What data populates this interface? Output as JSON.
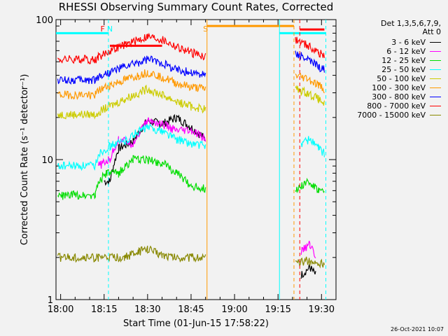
{
  "chart_data": {
    "type": "line",
    "title": "RHESSI Observing Summary Count Rates, Corrected",
    "xlabel": "Start Time (01-Jun-15 17:58:22)",
    "ylabel": "Corrected Count Rate (s⁻¹ detector⁻¹)",
    "yscale": "log",
    "ylim": [
      1,
      100
    ],
    "xlim_minutes": [
      -1.6,
      95
    ],
    "xticks": [
      {
        "t": 0,
        "label": "18:00"
      },
      {
        "t": 15,
        "label": "18:15"
      },
      {
        "t": 30,
        "label": "18:30"
      },
      {
        "t": 45,
        "label": "18:45"
      },
      {
        "t": 60,
        "label": "19:00"
      },
      {
        "t": 75,
        "label": "19:15"
      },
      {
        "t": 90,
        "label": "19:30"
      }
    ],
    "yticks": [
      {
        "v": 1,
        "label": "1"
      },
      {
        "v": 10,
        "label": "10"
      },
      {
        "v": 100,
        "label": "100"
      }
    ],
    "legend_header": [
      "Det 1,3,5,6,7,9,",
      "Att 0"
    ],
    "legend_placement": "right",
    "series": [
      {
        "name": "3 - 6 keV",
        "color": "#000000",
        "segments": [
          [
            [
              15,
              7
            ],
            [
              17,
              7
            ],
            [
              20,
              12
            ],
            [
              25,
              13.5
            ],
            [
              30,
              19
            ],
            [
              35,
              18
            ],
            [
              40,
              20
            ],
            [
              45,
              17
            ],
            [
              50,
              14
            ]
          ],
          [
            [
              83,
              1.5
            ],
            [
              86,
              1.7
            ],
            [
              88,
              1.5
            ]
          ]
        ]
      },
      {
        "name": "6 - 12 keV",
        "color": "#ff00ff",
        "segments": [
          [
            [
              13,
              9
            ],
            [
              15,
              9.5
            ],
            [
              17,
              10
            ],
            [
              20,
              14
            ],
            [
              25,
              13
            ],
            [
              30,
              19
            ],
            [
              35,
              18
            ],
            [
              40,
              16
            ],
            [
              45,
              16
            ],
            [
              50,
              14
            ]
          ],
          [
            [
              83,
              2.2
            ],
            [
              86,
              2.5
            ],
            [
              88,
              2
            ]
          ]
        ]
      },
      {
        "name": "12 - 25 keV",
        "color": "#00dd00",
        "segments": [
          [
            [
              -1,
              5.5
            ],
            [
              5,
              5.6
            ],
            [
              12,
              5.6
            ],
            [
              13,
              7
            ],
            [
              16,
              8
            ],
            [
              20,
              8
            ],
            [
              25,
              10
            ],
            [
              30,
              10
            ],
            [
              35,
              9.5
            ],
            [
              40,
              8
            ],
            [
              45,
              6.5
            ],
            [
              50,
              6.2
            ]
          ],
          [
            [
              81,
              6
            ],
            [
              85,
              7
            ],
            [
              89,
              6
            ],
            [
              91,
              5.8
            ]
          ]
        ]
      },
      {
        "name": "25 - 50 keV",
        "color": "#00ffff",
        "segments": [
          [
            [
              -1,
              9
            ],
            [
              5,
              9
            ],
            [
              12,
              9
            ],
            [
              13,
              11
            ],
            [
              17,
              12.5
            ],
            [
              22,
              13.5
            ],
            [
              27,
              16
            ],
            [
              30,
              17
            ],
            [
              35,
              16
            ],
            [
              40,
              14
            ],
            [
              45,
              13
            ],
            [
              50,
              12.5
            ]
          ],
          [
            [
              83,
              13
            ],
            [
              86,
              14
            ],
            [
              89,
              12
            ],
            [
              91,
              11
            ]
          ]
        ]
      },
      {
        "name": "50 - 100 keV",
        "color": "#cccc00",
        "segments": [
          [
            [
              -1,
              21
            ],
            [
              5,
              21
            ],
            [
              12,
              21
            ],
            [
              13,
              22
            ],
            [
              17,
              24
            ],
            [
              22,
              27
            ],
            [
              27,
              30
            ],
            [
              30,
              32
            ],
            [
              35,
              29
            ],
            [
              40,
              26
            ],
            [
              45,
              24
            ],
            [
              50,
              23
            ]
          ],
          [
            [
              81,
              32
            ],
            [
              85,
              30
            ],
            [
              89,
              27
            ],
            [
              91,
              25
            ]
          ]
        ]
      },
      {
        "name": "100 - 300 keV",
        "color": "#ff9900",
        "segments": [
          [
            [
              -1,
              29
            ],
            [
              5,
              29
            ],
            [
              12,
              29
            ],
            [
              13,
              31
            ],
            [
              17,
              34
            ],
            [
              22,
              37
            ],
            [
              27,
              40
            ],
            [
              30,
              42
            ],
            [
              35,
              39
            ],
            [
              40,
              35
            ],
            [
              45,
              33
            ],
            [
              50,
              32
            ]
          ],
          [
            [
              81,
              40
            ],
            [
              85,
              38
            ],
            [
              89,
              34
            ],
            [
              91,
              32
            ]
          ]
        ]
      },
      {
        "name": "300 - 800 keV",
        "color": "#0000ff",
        "segments": [
          [
            [
              -1,
              37
            ],
            [
              5,
              37
            ],
            [
              12,
              37
            ],
            [
              13,
              39
            ],
            [
              17,
              42
            ],
            [
              22,
              46
            ],
            [
              27,
              49
            ],
            [
              30,
              52
            ],
            [
              35,
              49
            ],
            [
              40,
              44
            ],
            [
              45,
              42
            ],
            [
              50,
              40
            ]
          ],
          [
            [
              81,
              58
            ],
            [
              85,
              52
            ],
            [
              89,
              46
            ],
            [
              91,
              44
            ]
          ]
        ]
      },
      {
        "name": "800 - 7000 keV",
        "color": "#ff0000",
        "segments": [
          [
            [
              -1,
              52
            ],
            [
              5,
              52
            ],
            [
              12,
              52
            ],
            [
              13,
              54
            ],
            [
              17,
              60
            ],
            [
              22,
              66
            ],
            [
              27,
              72
            ],
            [
              30,
              76
            ],
            [
              35,
              72
            ],
            [
              40,
              64
            ],
            [
              45,
              58
            ],
            [
              50,
              55
            ]
          ],
          [
            [
              81,
              72
            ],
            [
              85,
              66
            ],
            [
              89,
              58
            ],
            [
              91,
              55
            ]
          ]
        ]
      },
      {
        "name": "7000 - 15000 keV",
        "color": "#888800",
        "segments": [
          [
            [
              -1,
              2
            ],
            [
              5,
              2
            ],
            [
              12,
              2
            ],
            [
              13,
              2
            ],
            [
              17,
              2
            ],
            [
              22,
              2
            ],
            [
              27,
              2.2
            ],
            [
              30,
              2.3
            ],
            [
              35,
              2.1
            ],
            [
              40,
              2
            ],
            [
              45,
              2
            ],
            [
              50,
              2
            ]
          ],
          [
            [
              81,
              1.8
            ],
            [
              85,
              1.9
            ],
            [
              89,
              1.8
            ],
            [
              91,
              1.8
            ]
          ]
        ]
      }
    ],
    "annotations": [
      {
        "text": "F",
        "t": 14.5,
        "color": "#ff0000",
        "note": "flare flag"
      },
      {
        "text": "N",
        "t": 17,
        "color": "#00ffff",
        "note": "night flag"
      },
      {
        "text": "S",
        "t": 50,
        "color": "#ff9900",
        "note": "SAA flag"
      }
    ],
    "vertical_lines": [
      {
        "t": 16.5,
        "color": "#00ffff",
        "style": "dashed"
      },
      {
        "t": 50.5,
        "color": "#ff9900",
        "style": "solid"
      },
      {
        "t": 75.5,
        "color": "#00ffff",
        "style": "solid"
      },
      {
        "t": 80.5,
        "color": "#ff9900",
        "style": "dashed"
      },
      {
        "t": 82.5,
        "color": "#ff0000",
        "style": "dashed"
      },
      {
        "t": 91.5,
        "color": "#00ffff",
        "style": "dashed"
      }
    ],
    "flag_bars": [
      {
        "label": "N",
        "color": "#00ffff",
        "t0": -1.6,
        "t1": 16.5,
        "level": 80
      },
      {
        "label": "F",
        "color": "#ff0000",
        "t0": 17,
        "t1": 35,
        "level": 65
      },
      {
        "label": "S",
        "color": "#ff9900",
        "t0": 50.5,
        "t1": 80.5,
        "level": 90
      },
      {
        "label": "N",
        "color": "#00ffff",
        "t0": 75.5,
        "t1": 91.5,
        "level": 80
      },
      {
        "label": "F",
        "color": "#ff0000",
        "t0": 82.5,
        "t1": 91,
        "level": 85
      }
    ],
    "grid": false
  },
  "stamp": "26-Oct-2021 10:07"
}
